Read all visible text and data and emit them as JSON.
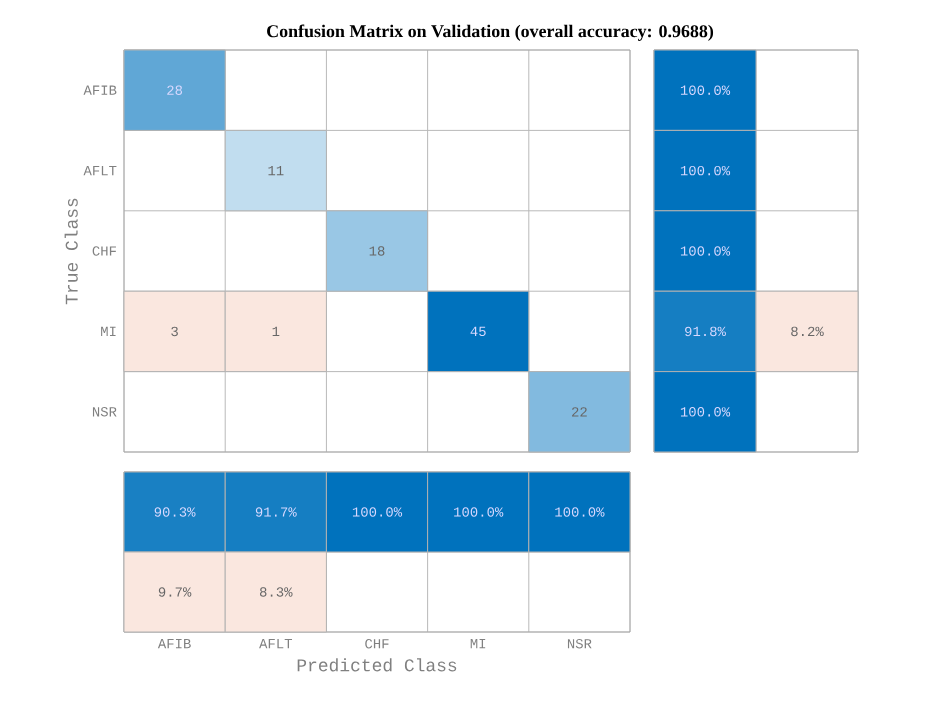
{
  "chart_data": [
    {
      "type": "heatmap",
      "title": "Confusion Matrix on Validation (overall accuracy: 0.9688)",
      "ylabel": "True Class",
      "categories": [
        null,
        null,
        null,
        null,
        null
      ],
      "y_categories": [
        "AFIB",
        "AFLT",
        "CHF",
        "MI",
        "NSR"
      ],
      "cells": [
        [
          28,
          null,
          null,
          null,
          null
        ],
        [
          null,
          11,
          null,
          null,
          null
        ],
        [
          null,
          null,
          18,
          null,
          null
        ],
        [
          3,
          1,
          null,
          45,
          null
        ],
        [
          null,
          null,
          null,
          null,
          22
        ]
      ],
      "data_labels": true
    },
    {
      "type": "heatmap",
      "categories": [
        null,
        null
      ],
      "y_categories": [
        null,
        null,
        null,
        null,
        null
      ],
      "cells": [
        [
          100.0,
          null
        ],
        [
          100.0,
          null
        ],
        [
          100.0,
          null
        ],
        [
          91.8,
          8.2
        ],
        [
          100.0,
          null
        ]
      ],
      "cell_labels": [
        [
          "100.0%",
          null
        ],
        [
          "100.0%",
          null
        ],
        [
          "100.0%",
          null
        ],
        [
          "91.8%",
          "8.2%"
        ],
        [
          "100.0%",
          null
        ]
      ],
      "tick_labels": false
    },
    {
      "type": "heatmap",
      "xlabel": "Predicted Class",
      "categories": [
        "AFIB",
        "AFLT",
        "CHF",
        "MI",
        "NSR"
      ],
      "y_categories": [
        null,
        null
      ],
      "cells": [
        [
          90.3,
          91.7,
          100.0,
          100.0,
          100.0
        ],
        [
          9.7,
          8.3,
          null,
          null,
          null
        ]
      ],
      "cell_labels": [
        [
          "90.3%",
          "91.7%",
          "100.0%",
          "100.0%",
          "100.0%"
        ],
        [
          "9.7%",
          "8.3%",
          null,
          null,
          null
        ]
      ],
      "tick_labels": "x"
    }
  ]
}
